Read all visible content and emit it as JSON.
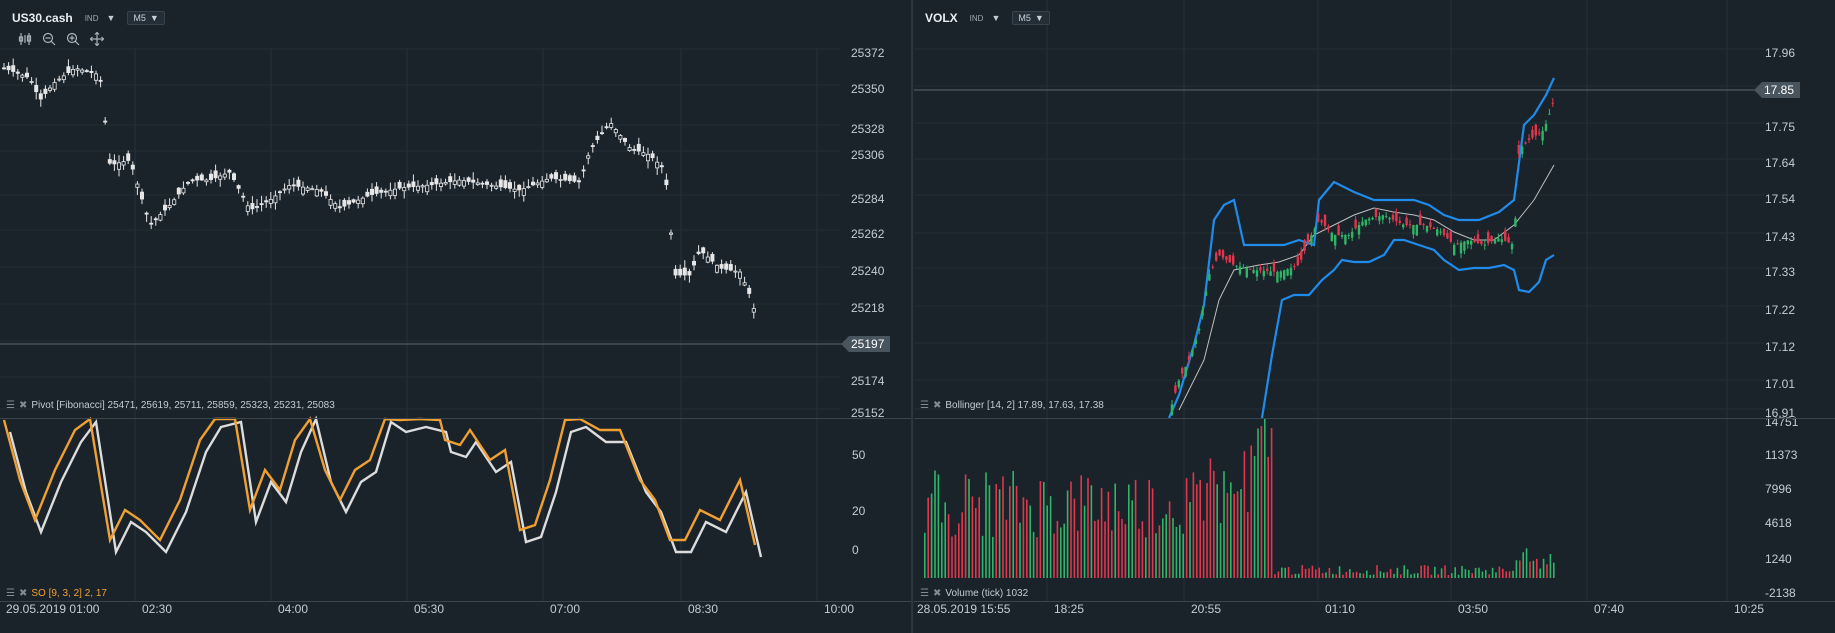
{
  "left": {
    "symbol": "US30.cash",
    "badge": "IND",
    "timeframe": "M5",
    "price_axis": [
      "25372",
      "25350",
      "25328",
      "25306",
      "25284",
      "25262",
      "25240",
      "25218",
      "25197",
      "25174",
      "25152"
    ],
    "last_price": "25197",
    "pivot_label": "Pivot [Fibonacci] 25471, 25619, 25711, 25859, 25323, 25231, 25083",
    "so_label": "SO [9, 3, 2] 2, 17",
    "so_axis": [
      "50",
      "20",
      "0"
    ],
    "time_axis": [
      "29.05.2019 01:00",
      "02:30",
      "04:00",
      "05:30",
      "07:00",
      "08:30",
      "10:00"
    ],
    "colors": {
      "candle": "#e6e6e6",
      "so_k": "#f0a033",
      "so_d": "#dcdcdc"
    }
  },
  "right": {
    "symbol": "VOLX",
    "badge": "IND",
    "timeframe": "M5",
    "price_axis": [
      "17.96",
      "17.85",
      "17.75",
      "17.64",
      "17.54",
      "17.43",
      "17.33",
      "17.22",
      "17.12",
      "17.01",
      "16.91"
    ],
    "last_price": "17.85",
    "bollinger_label": "Bollinger [14, 2] 17.89, 17.63, 17.38",
    "volume_label": "Volume (tick) 1032",
    "volume_axis": [
      "14751",
      "11373",
      "7996",
      "4618",
      "1240",
      "-2138"
    ],
    "time_axis": [
      "28.05.2019 15:55",
      "18:25",
      "20:55",
      "01:10",
      "03:50",
      "07:40",
      "10:25"
    ],
    "colors": {
      "up": "#2fb567",
      "down": "#e0374f",
      "band": "#1f8bea",
      "mid": "#bfbfbf"
    }
  }
}
